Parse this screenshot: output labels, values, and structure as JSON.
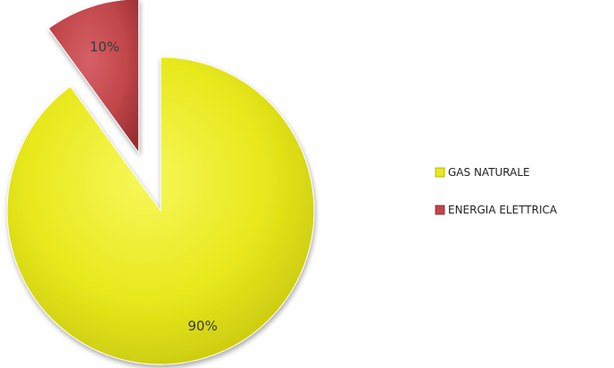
{
  "chart_data": {
    "type": "pie",
    "categories": [
      "GAS NATURALE",
      "ENERGIA ELETTRICA"
    ],
    "values": [
      90,
      10
    ],
    "labels": [
      "90%",
      "10%"
    ],
    "colors": [
      "#e8e81c",
      "#c0464a"
    ],
    "exploded": [
      "ENERGIA ELETTRICA"
    ],
    "legend": {
      "position": "right",
      "entries": [
        "GAS NATURALE",
        "ENERGIA ELETTRICA"
      ]
    },
    "title": "",
    "style": "3d-shaded"
  }
}
